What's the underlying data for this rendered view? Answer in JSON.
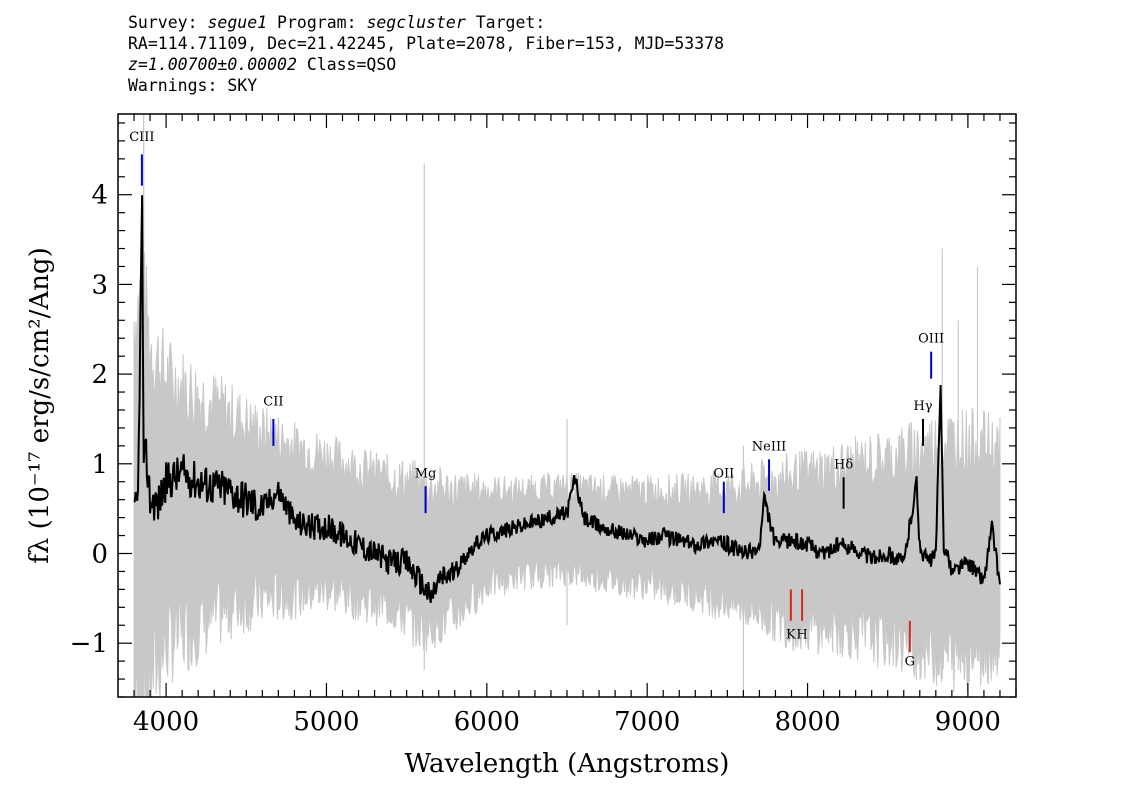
{
  "header": {
    "line1": {
      "survey_label": "Survey: ",
      "survey": "segue1",
      "program_label": " Program: ",
      "program": "segcluster",
      "target_label": " Target:"
    },
    "line2": "RA=114.71109, Dec=21.42245, Plate=2078, Fiber=153, MJD=53378",
    "line3": {
      "z": "z=1.00700±0.00002",
      "cls": " Class=QSO"
    },
    "line4": "Warnings: SKY"
  },
  "chart_data": {
    "type": "line",
    "xlabel": "Wavelength (Angstroms)",
    "ylabel": "fλ (10⁻¹⁷ erg/s/cm²/Ang)",
    "xlim": [
      3700,
      9300
    ],
    "ylim": [
      -1.6,
      4.9
    ],
    "xticks": [
      {
        "value": 4000,
        "label": "4000"
      },
      {
        "value": 5000,
        "label": "5000"
      },
      {
        "value": 6000,
        "label": "6000"
      },
      {
        "value": 7000,
        "label": "7000"
      },
      {
        "value": 8000,
        "label": "8000"
      },
      {
        "value": 9000,
        "label": "9000"
      }
    ],
    "yticks": [
      {
        "value": -1,
        "label": "−1"
      },
      {
        "value": 0,
        "label": "0"
      },
      {
        "value": 1,
        "label": "1"
      },
      {
        "value": 2,
        "label": "2"
      },
      {
        "value": 3,
        "label": "3"
      },
      {
        "value": 4,
        "label": "4"
      }
    ],
    "grid": false,
    "series": [
      {
        "role": "error_envelope",
        "color": "#c8c8c8",
        "x": [
          3800,
          3850,
          3900,
          4000,
          4200,
          4400,
          4600,
          4800,
          5000,
          5200,
          5400,
          5600,
          5800,
          6000,
          6200,
          6500,
          6800,
          7000,
          7300,
          7600,
          7900,
          8200,
          8500,
          8700,
          8900,
          9100,
          9200
        ],
        "upper": [
          2.6,
          2.9,
          2.3,
          1.95,
          1.75,
          1.55,
          1.35,
          1.2,
          1.1,
          0.95,
          0.85,
          0.75,
          0.7,
          0.7,
          0.7,
          0.75,
          0.7,
          0.7,
          0.7,
          0.75,
          0.85,
          0.95,
          1.05,
          1.15,
          1.25,
          1.2,
          1.15
        ],
        "lower": [
          -1.6,
          -1.6,
          -1.4,
          -1.0,
          -0.8,
          -0.6,
          -0.5,
          -0.45,
          -0.4,
          -0.5,
          -0.6,
          -0.85,
          -0.7,
          -0.35,
          -0.25,
          -0.2,
          -0.3,
          -0.35,
          -0.45,
          -0.6,
          -0.8,
          -0.85,
          -0.95,
          -1.05,
          -1.15,
          -1.1,
          -1.0
        ]
      },
      {
        "role": "flux",
        "color": "#000000",
        "x": [
          3800,
          3825,
          3850,
          3860,
          3875,
          3900,
          3950,
          4000,
          4100,
          4200,
          4300,
          4400,
          4500,
          4600,
          4700,
          4800,
          4900,
          5000,
          5100,
          5200,
          5300,
          5400,
          5500,
          5600,
          5650,
          5700,
          5800,
          5900,
          6000,
          6100,
          6200,
          6300,
          6400,
          6500,
          6550,
          6600,
          6700,
          6800,
          6900,
          7000,
          7100,
          7200,
          7300,
          7400,
          7500,
          7600,
          7700,
          7730,
          7800,
          7900,
          8000,
          8100,
          8200,
          8300,
          8400,
          8500,
          8600,
          8680,
          8700,
          8760,
          8800,
          8830,
          8850,
          8900,
          9000,
          9100,
          9150,
          9200
        ],
        "y": [
          0.4,
          0.6,
          3.9,
          0.9,
          1.1,
          0.6,
          0.55,
          0.8,
          0.9,
          0.8,
          0.75,
          0.7,
          0.6,
          0.5,
          0.7,
          0.35,
          0.3,
          0.3,
          0.2,
          0.1,
          0.0,
          -0.1,
          -0.1,
          -0.35,
          -0.5,
          -0.3,
          -0.2,
          0.05,
          0.2,
          0.25,
          0.3,
          0.35,
          0.4,
          0.45,
          0.85,
          0.4,
          0.3,
          0.25,
          0.2,
          0.15,
          0.2,
          0.15,
          0.1,
          0.15,
          0.1,
          0.0,
          0.05,
          0.6,
          0.1,
          0.15,
          0.1,
          0.0,
          0.1,
          0.05,
          -0.05,
          0.0,
          -0.1,
          0.8,
          0.05,
          -0.1,
          0.0,
          1.85,
          0.1,
          -0.2,
          -0.1,
          -0.3,
          0.3,
          -0.35
        ]
      }
    ],
    "spectral_lines": [
      {
        "label": "CIII",
        "wavelength": 3849,
        "y_label": 4.6,
        "y_top": 4.45,
        "y_bottom": 4.1,
        "color": "#0000cc"
      },
      {
        "label": "CII",
        "wavelength": 4669,
        "y_label": 1.65,
        "y_top": 1.5,
        "y_bottom": 1.2,
        "color": "#0000cc"
      },
      {
        "label": "Mg",
        "wavelength": 5618,
        "y_label": 0.85,
        "y_top": 0.75,
        "y_bottom": 0.45,
        "color": "#0000cc"
      },
      {
        "label": "OII",
        "wavelength": 7478,
        "y_label": 0.85,
        "y_top": 0.8,
        "y_bottom": 0.45,
        "color": "#0000cc"
      },
      {
        "label": "NeIII",
        "wavelength": 7760,
        "y_label": 1.15,
        "y_top": 1.05,
        "y_bottom": 0.7,
        "color": "#0000cc"
      },
      {
        "label": "Hδ",
        "wavelength": 8225,
        "y_label": 0.95,
        "y_top": 0.85,
        "y_bottom": 0.5,
        "color": "#000000"
      },
      {
        "label": "Hγ",
        "wavelength": 8720,
        "y_label": 1.6,
        "y_top": 1.5,
        "y_bottom": 1.2,
        "color": "#000000"
      },
      {
        "label": "OIII",
        "wavelength": 8771,
        "y_label": 2.35,
        "y_top": 2.25,
        "y_bottom": 1.95,
        "color": "#0000cc"
      },
      {
        "label": "K",
        "wavelength": 7896,
        "y_label": -0.95,
        "y_top": -0.4,
        "y_bottom": -0.75,
        "color": "#dd2222"
      },
      {
        "label": "H",
        "wavelength": 7966,
        "y_label": -0.95,
        "y_top": -0.4,
        "y_bottom": -0.75,
        "color": "#dd2222"
      },
      {
        "label": "G",
        "wavelength": 8638,
        "y_label": -1.25,
        "y_top": -0.75,
        "y_bottom": -1.1,
        "color": "#dd2222"
      }
    ]
  }
}
